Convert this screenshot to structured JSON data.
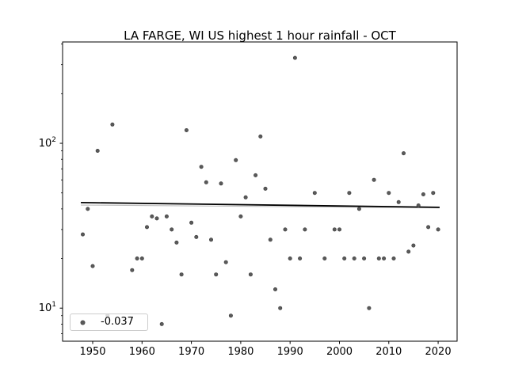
{
  "title": "LA FARGE, WI US highest 1 hour rainfall - OCT",
  "legend": {
    "label": "-0.037"
  },
  "chart_data": {
    "type": "scatter",
    "title": "LA FARGE, WI US highest 1 hour rainfall - OCT",
    "xlabel": "",
    "ylabel": "",
    "y_scale": "log",
    "xlim": [
      1943.9,
      2023.84
    ],
    "ylim": [
      6.3,
      412
    ],
    "x_ticks": [
      1950,
      1960,
      1970,
      1980,
      1990,
      2000,
      2010,
      2020
    ],
    "y_major_ticks": [
      10,
      100
    ],
    "y_minor_ticks": [
      7,
      8,
      9,
      20,
      30,
      40,
      50,
      60,
      70,
      80,
      90,
      200,
      300,
      400
    ],
    "grid": false,
    "legend_position": "lower left",
    "legend_label": "-0.037",
    "marker_color": "#5a5a5a",
    "marker_edge_color": "#3c3c3c",
    "points": [
      [
        1948,
        28
      ],
      [
        1949,
        40
      ],
      [
        1950,
        18
      ],
      [
        1951,
        90
      ],
      [
        1953,
        9
      ],
      [
        1954,
        130
      ],
      [
        1958,
        17
      ],
      [
        1959,
        20
      ],
      [
        1960,
        20
      ],
      [
        1961,
        31
      ],
      [
        1962,
        36
      ],
      [
        1963,
        35
      ],
      [
        1964,
        8
      ],
      [
        1965,
        36
      ],
      [
        1966,
        30
      ],
      [
        1967,
        25
      ],
      [
        1968,
        16
      ],
      [
        1969,
        120
      ],
      [
        1970,
        33
      ],
      [
        1971,
        27
      ],
      [
        1972,
        72
      ],
      [
        1973,
        58
      ],
      [
        1974,
        26
      ],
      [
        1975,
        16
      ],
      [
        1976,
        57
      ],
      [
        1977,
        19
      ],
      [
        1978,
        9
      ],
      [
        1979,
        79
      ],
      [
        1980,
        36
      ],
      [
        1981,
        47
      ],
      [
        1982,
        16
      ],
      [
        1983,
        64
      ],
      [
        1984,
        110
      ],
      [
        1985,
        53
      ],
      [
        1986,
        26
      ],
      [
        1987,
        13
      ],
      [
        1988,
        10
      ],
      [
        1989,
        30
      ],
      [
        1990,
        20
      ],
      [
        1991,
        330
      ],
      [
        1992,
        20
      ],
      [
        1993,
        30
      ],
      [
        1995,
        50
      ],
      [
        1997,
        20
      ],
      [
        1999,
        30
      ],
      [
        2000,
        30
      ],
      [
        2001,
        20
      ],
      [
        2002,
        50
      ],
      [
        2003,
        20
      ],
      [
        2004,
        40
      ],
      [
        2005,
        20
      ],
      [
        2006,
        10
      ],
      [
        2007,
        60
      ],
      [
        2008,
        20
      ],
      [
        2009,
        20
      ],
      [
        2010,
        50
      ],
      [
        2011,
        20
      ],
      [
        2012,
        44
      ],
      [
        2013,
        87
      ],
      [
        2014,
        22
      ],
      [
        2015,
        24
      ],
      [
        2016,
        42
      ],
      [
        2017,
        49
      ],
      [
        2018,
        31
      ],
      [
        2019,
        50
      ],
      [
        2020,
        30
      ]
    ],
    "trend_lines": [
      {
        "name": "secondary-fit-line",
        "color": "#bdbdbd",
        "width": 1.1,
        "x1": 1947.6,
        "v1": 42.2,
        "x2": 2020.3,
        "v2": 40.6
      },
      {
        "name": "trend-line",
        "color": "#000000",
        "width": 1.8,
        "x1": 1947.6,
        "v1": 43.7,
        "x2": 2020.3,
        "v2": 40.9,
        "slope": "-0.037"
      }
    ]
  }
}
